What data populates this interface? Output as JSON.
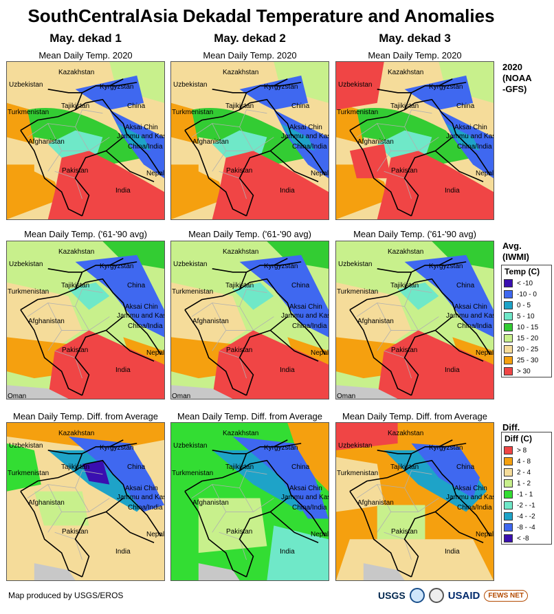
{
  "title": "SouthCentralAsia Dekadal Temperature and Anomalies",
  "columns": [
    "May. dekad 1",
    "May. dekad 2",
    "May. dekad 3"
  ],
  "row_subtitles": [
    "Mean Daily Temp. 2020",
    "Mean Daily Temp. ('61-'90 avg)",
    "Mean Daily Temp. Diff. from Average"
  ],
  "row_tags": {
    "current": [
      "2020",
      "(NOAA",
      "-GFS)"
    ],
    "average": [
      "Avg.",
      "(IWMI)"
    ],
    "difference": [
      "Diff."
    ]
  },
  "place_labels": [
    "Kazakhstan",
    "Uzbekistan",
    "Kyrgyzstan",
    "Turkmenistan",
    "Tajikistan",
    "China",
    "Aksai Chin",
    "Jammu and Kashmir",
    "Afghanistan",
    "China/India",
    "Pakistan",
    "Nepal",
    "India",
    "Oman"
  ],
  "legend_temp": {
    "title": "Temp (C)",
    "items": [
      {
        "label": "< -10",
        "color": "#3a0fb0"
      },
      {
        "label": "-10 - 0",
        "color": "#3f68f0"
      },
      {
        "label": "0 - 5",
        "color": "#1ea3c8"
      },
      {
        "label": "5 - 10",
        "color": "#6fe8c8"
      },
      {
        "label": "10 - 15",
        "color": "#33cc33"
      },
      {
        "label": "15 - 20",
        "color": "#c8f08c"
      },
      {
        "label": "20 - 25",
        "color": "#f5dc9a"
      },
      {
        "label": "25 - 30",
        "color": "#f5a00f"
      },
      {
        "label": "> 30",
        "color": "#f04545"
      }
    ]
  },
  "legend_diff": {
    "title": "Diff (C)",
    "items": [
      {
        "label": "> 8",
        "color": "#f04545"
      },
      {
        "label": "4 - 8",
        "color": "#f5a00f"
      },
      {
        "label": "2 - 4",
        "color": "#f5dc9a"
      },
      {
        "label": "1 - 2",
        "color": "#c8f08c"
      },
      {
        "label": "-1 - 1",
        "color": "#33dd33"
      },
      {
        "label": "-2 - -1",
        "color": "#6fe8c8"
      },
      {
        "label": "-4 - -2",
        "color": "#1ea3c8"
      },
      {
        "label": "-8 - -4",
        "color": "#3f68f0"
      },
      {
        "label": "< -8",
        "color": "#3a0fb0"
      }
    ]
  },
  "footer": "Map produced by USGS/EROS",
  "logos": {
    "usgs": "USGS",
    "usaid": "USAID",
    "fews": "FEWS NET"
  }
}
